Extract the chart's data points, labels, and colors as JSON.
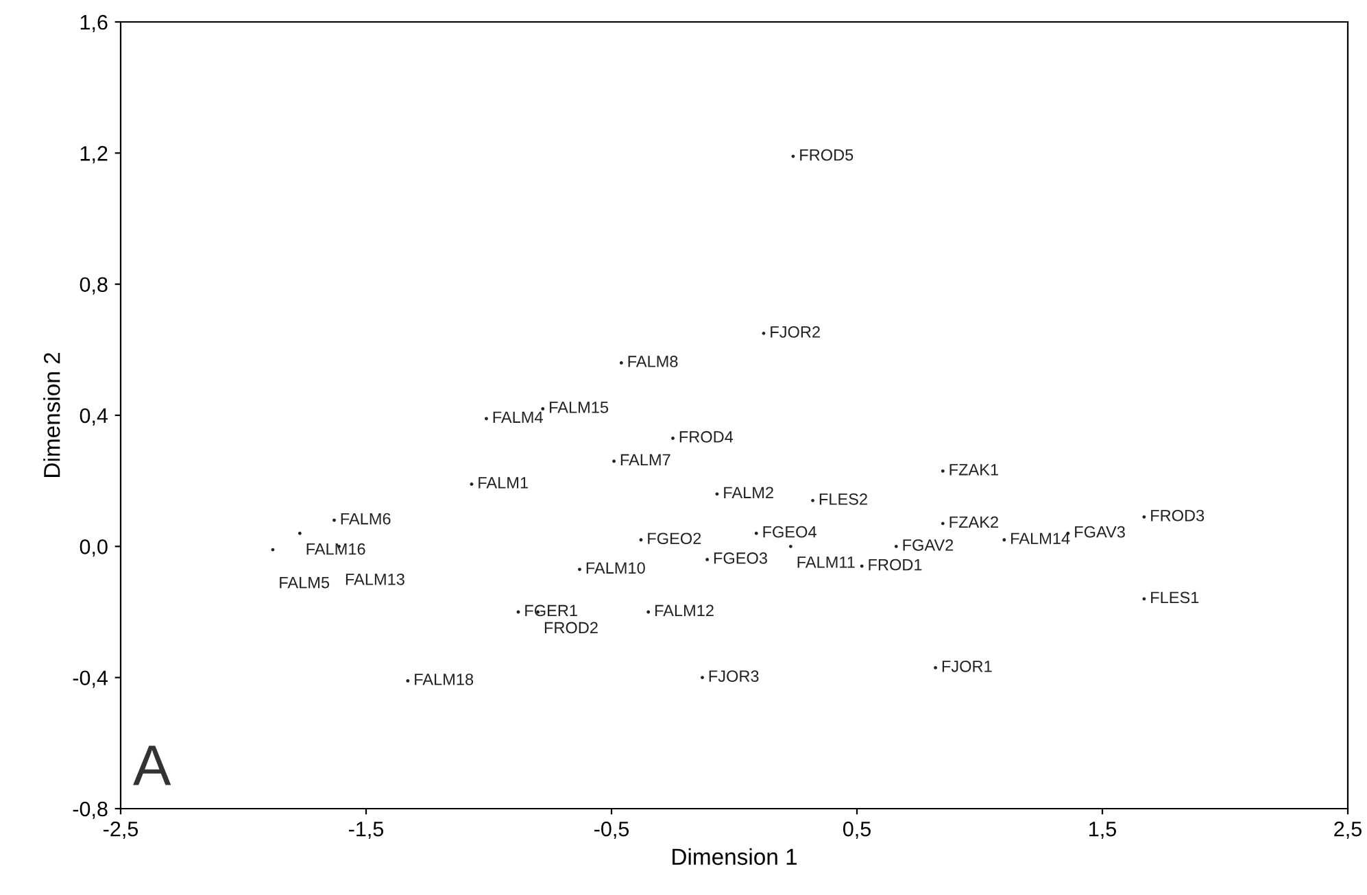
{
  "chart_data": {
    "type": "scatter",
    "xlabel": "Dimension 1",
    "ylabel": "Dimension 2",
    "xlim": [
      -2.5,
      2.5
    ],
    "ylim": [
      -0.8,
      1.6
    ],
    "xticks": [
      {
        "value": -2.5,
        "label": "-2,5"
      },
      {
        "value": -1.5,
        "label": "-1,5"
      },
      {
        "value": -0.5,
        "label": "-0,5"
      },
      {
        "value": 0.5,
        "label": "0,5"
      },
      {
        "value": 1.5,
        "label": "1,5"
      },
      {
        "value": 2.5,
        "label": "2,5"
      }
    ],
    "yticks": [
      {
        "value": -0.8,
        "label": "-0,8"
      },
      {
        "value": -0.4,
        "label": "-0,4"
      },
      {
        "value": 0.0,
        "label": "0,0"
      },
      {
        "value": 0.4,
        "label": "0,4"
      },
      {
        "value": 0.8,
        "label": "0,8"
      },
      {
        "value": 1.2,
        "label": "1,2"
      },
      {
        "value": 1.6,
        "label": "1,6"
      }
    ],
    "grid": false,
    "marker": "circle",
    "legend": false,
    "series": [
      {
        "color": "#222222",
        "x": [
          0.24,
          0.12,
          -0.46,
          -1.01,
          -0.78,
          -0.25,
          -0.49,
          -1.07,
          -0.07,
          0.32,
          0.85,
          -1.63,
          -1.77,
          -1.88,
          -1.61,
          -0.38,
          0.09,
          0.23,
          0.85,
          0.66,
          1.1,
          1.36,
          1.67,
          -0.11,
          0.52,
          -0.63,
          1.67,
          -0.88,
          -0.8,
          -0.35,
          -0.13,
          0.82,
          -1.33
        ],
        "values": [
          1.19,
          0.65,
          0.56,
          0.39,
          0.42,
          0.33,
          0.26,
          0.19,
          0.16,
          0.14,
          0.23,
          0.08,
          0.04,
          -0.01,
          0.0,
          0.02,
          0.04,
          0.0,
          0.07,
          0.0,
          0.02,
          0.04,
          0.09,
          -0.04,
          -0.06,
          -0.07,
          -0.16,
          -0.2,
          -0.2,
          -0.2,
          -0.4,
          -0.37,
          -0.41
        ],
        "value_labels": [
          "FROD5",
          "FJOR2",
          "FALM8",
          "FALM4",
          "FALM15",
          "FROD4",
          "FALM7",
          "FALM1",
          "FALM2",
          "FLES2",
          "FZAK1",
          "FALM6",
          "FALM16",
          "FALM5",
          "FALM13",
          "FGEO2",
          "FGEO4",
          "FALM11",
          "FZAK2",
          "FGAV2",
          "FALM14",
          "FGAV3",
          "FROD3",
          "FGEO3",
          "FROD1",
          "FALM10",
          "FLES1",
          "FGER1",
          "FROD2",
          "FALM12",
          "FJOR3",
          "FJOR1",
          "FALM18"
        ]
      }
    ],
    "annotations": [
      "A"
    ]
  }
}
